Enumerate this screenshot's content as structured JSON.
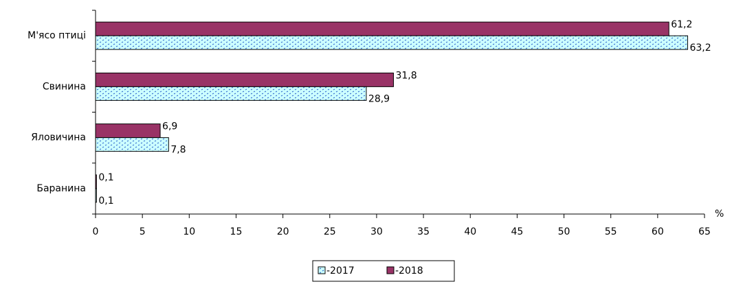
{
  "chart_data": {
    "type": "barh",
    "categories": [
      "М'ясо птиці",
      "Свинина",
      "Яловичина",
      "Баранина"
    ],
    "series": [
      {
        "name": "-2017",
        "color": "#ccffff",
        "values": [
          63.2,
          28.9,
          7.8,
          0.1
        ],
        "value_labels": [
          "63,2",
          "28,9",
          "7,8",
          "0,1"
        ]
      },
      {
        "name": "-2018",
        "color": "#993366",
        "values": [
          61.2,
          31.8,
          6.9,
          0.1
        ],
        "value_labels": [
          "61,2",
          "31,8",
          "6,9",
          "0,1"
        ]
      }
    ],
    "xlabel": "%",
    "xlim": [
      0,
      65
    ],
    "xticks": [
      0,
      5,
      10,
      15,
      20,
      25,
      30,
      35,
      40,
      45,
      50,
      55,
      60,
      65
    ]
  }
}
